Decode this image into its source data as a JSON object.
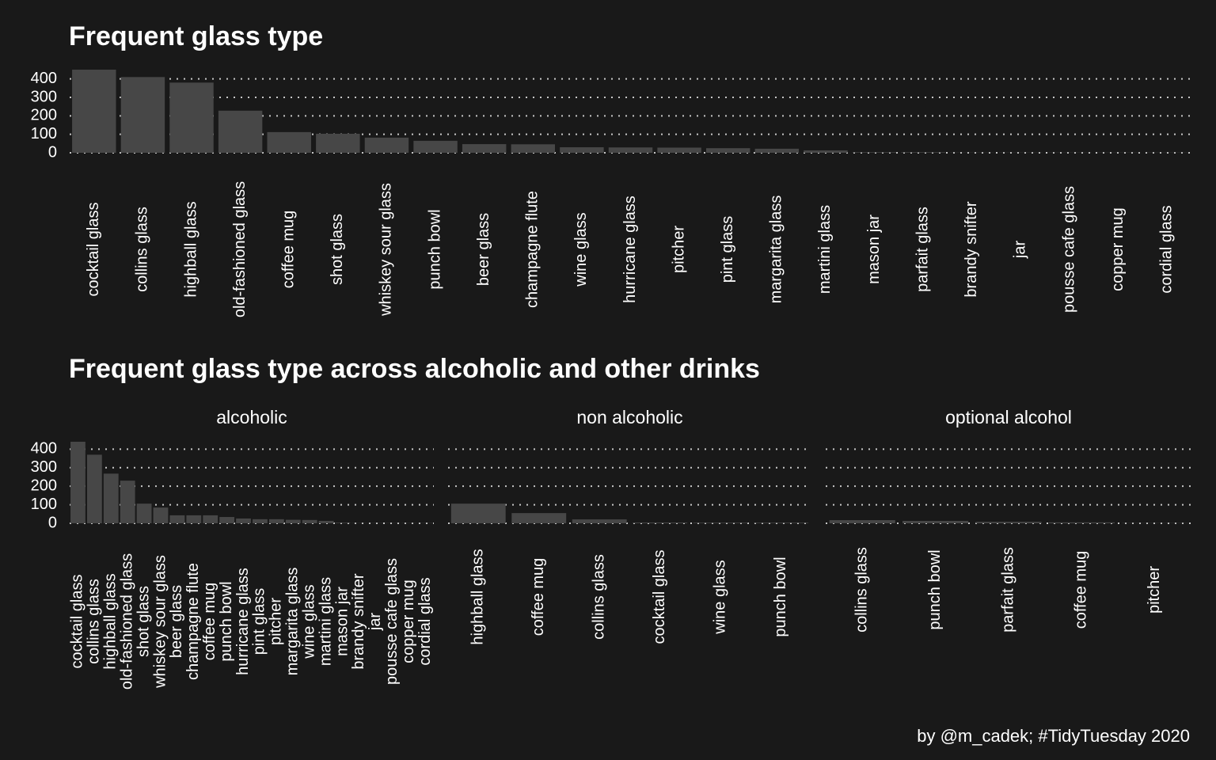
{
  "chart_data": [
    {
      "type": "bar",
      "title": "Frequent glass type",
      "categories": [
        "cocktail glass",
        "collins glass",
        "highball glass",
        "old-fashioned glass",
        "coffee mug",
        "shot glass",
        "whiskey sour glass",
        "punch bowl",
        "beer glass",
        "champagne flute",
        "wine glass",
        "hurricane glass",
        "pitcher",
        "pint glass",
        "margarita glass",
        "martini glass",
        "mason jar",
        "parfait glass",
        "brandy snifter",
        "jar",
        "pousse cafe glass",
        "copper mug",
        "cordial glass"
      ],
      "values": [
        450,
        410,
        380,
        228,
        112,
        103,
        82,
        65,
        47,
        46,
        30,
        29,
        28,
        25,
        22,
        13,
        3,
        3,
        1,
        1,
        1,
        1,
        1
      ],
      "color": "#474747",
      "ylim": [
        0,
        450
      ],
      "yticks": [
        0,
        100,
        200,
        300,
        400
      ],
      "grid": true
    },
    {
      "type": "bar",
      "title": "Frequent glass type across alcoholic and other drinks",
      "color": "#474747",
      "ylim": [
        0,
        440
      ],
      "yticks": [
        0,
        100,
        200,
        300,
        400
      ],
      "grid": true,
      "facets": [
        {
          "name": "alcoholic",
          "categories": [
            "cocktail glass",
            "collins glass",
            "highball glass",
            "old-fashioned glass",
            "shot glass",
            "whiskey sour glass",
            "beer glass",
            "champagne flute",
            "coffee mug",
            "punch bowl",
            "hurricane glass",
            "pint glass",
            "pitcher",
            "margarita glass",
            "wine glass",
            "martini glass",
            "mason jar",
            "brandy snifter",
            "jar",
            "pousse cafe glass",
            "copper mug",
            "cordial glass"
          ],
          "values": [
            440,
            370,
            268,
            230,
            106,
            85,
            43,
            43,
            43,
            34,
            26,
            22,
            22,
            19,
            18,
            13,
            3,
            1,
            1,
            1,
            1,
            1
          ]
        },
        {
          "name": "non alcoholic",
          "categories": [
            "highball glass",
            "coffee mug",
            "collins glass",
            "cocktail glass",
            "wine glass",
            "punch bowl"
          ],
          "values": [
            106,
            55,
            21,
            4,
            3,
            3
          ]
        },
        {
          "name": "optional alcohol",
          "categories": [
            "collins glass",
            "punch bowl",
            "parfait glass",
            "coffee mug",
            "pitcher"
          ],
          "values": [
            17,
            13,
            8,
            5,
            1
          ]
        }
      ]
    }
  ],
  "caption": "by @m_cadek; #TidyTuesday 2020"
}
